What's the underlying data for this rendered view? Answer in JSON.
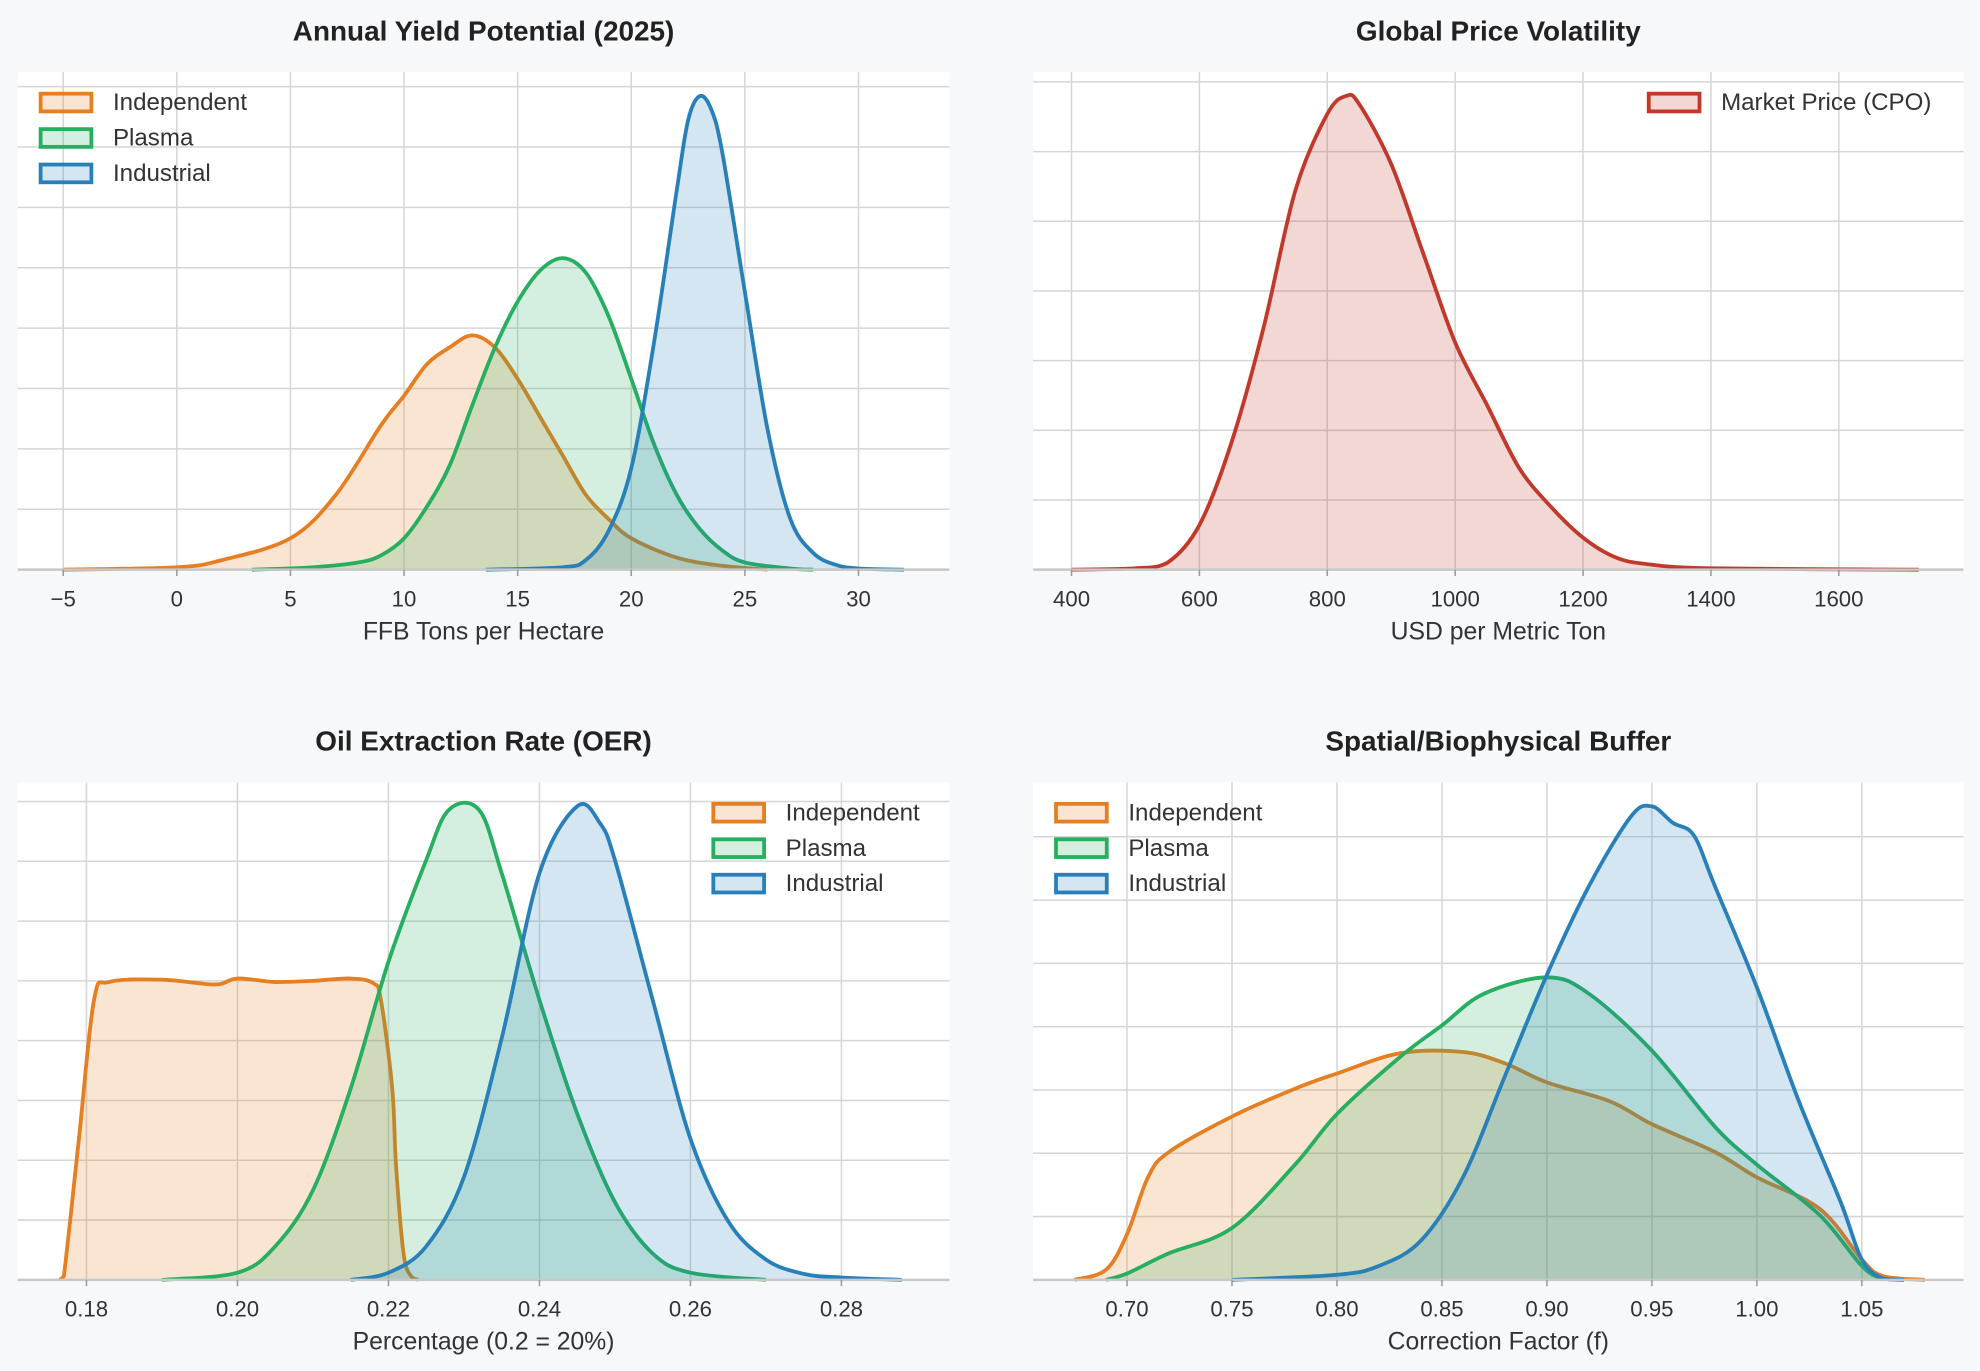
{
  "chart_data": [
    {
      "type": "area",
      "title": "Annual Yield Potential (2025)",
      "xlabel": "FFB Tons per Hectare",
      "ylabel": "",
      "xlim": [
        -7,
        34
      ],
      "ylim": [
        0,
        0.206
      ],
      "xticks": [
        -5,
        0,
        5,
        10,
        15,
        20,
        25,
        30
      ],
      "xtick_labels": [
        "−5",
        "0",
        "5",
        "10",
        "15",
        "20",
        "25",
        "30"
      ],
      "y_grid_step": 0.025,
      "grid": true,
      "legend": "top-left",
      "series": [
        {
          "name": "Independent",
          "color": "#e67e22",
          "points": [
            [
              -5,
              0
            ],
            [
              0,
              0.001
            ],
            [
              2,
              0.004
            ],
            [
              5,
              0.013
            ],
            [
              7,
              0.031
            ],
            [
              9,
              0.06
            ],
            [
              10,
              0.072
            ],
            [
              11,
              0.085
            ],
            [
              12,
              0.092
            ],
            [
              13,
              0.097
            ],
            [
              14,
              0.092
            ],
            [
              15,
              0.079
            ],
            [
              16,
              0.063
            ],
            [
              17,
              0.047
            ],
            [
              18,
              0.031
            ],
            [
              19,
              0.021
            ],
            [
              20,
              0.013
            ],
            [
              22,
              0.005
            ],
            [
              24,
              0.0016
            ],
            [
              26,
              0
            ]
          ]
        },
        {
          "name": "Plasma",
          "color": "#27ae60",
          "points": [
            [
              3.3,
              0
            ],
            [
              6,
              0.001
            ],
            [
              8,
              0.003
            ],
            [
              9,
              0.006
            ],
            [
              10,
              0.013
            ],
            [
              11,
              0.026
            ],
            [
              12,
              0.043
            ],
            [
              13,
              0.068
            ],
            [
              14,
              0.092
            ],
            [
              15,
              0.111
            ],
            [
              16,
              0.124
            ],
            [
              17,
              0.129
            ],
            [
              18,
              0.123
            ],
            [
              19,
              0.105
            ],
            [
              20,
              0.079
            ],
            [
              21,
              0.052
            ],
            [
              22,
              0.031
            ],
            [
              23,
              0.017
            ],
            [
              24,
              0.008
            ],
            [
              25,
              0.003
            ],
            [
              27,
              0.0005
            ],
            [
              28,
              0
            ]
          ]
        },
        {
          "name": "Industrial",
          "color": "#2980b9",
          "points": [
            [
              13.6,
              0
            ],
            [
              17,
              0.001
            ],
            [
              18,
              0.004
            ],
            [
              19,
              0.016
            ],
            [
              20,
              0.042
            ],
            [
              21,
              0.094
            ],
            [
              22,
              0.157
            ],
            [
              22.5,
              0.186
            ],
            [
              23,
              0.196
            ],
            [
              23.5,
              0.191
            ],
            [
              24,
              0.173
            ],
            [
              25,
              0.115
            ],
            [
              26,
              0.058
            ],
            [
              27,
              0.021
            ],
            [
              28,
              0.007
            ],
            [
              29,
              0.002
            ],
            [
              30,
              0.0005
            ],
            [
              32,
              0
            ]
          ]
        }
      ]
    },
    {
      "type": "area",
      "title": "Global Price Volatility",
      "xlabel": "USD per Metric Ton",
      "ylabel": "",
      "xlim": [
        340,
        1795
      ],
      "ylim": [
        0,
        0.00357
      ],
      "xticks": [
        400,
        600,
        800,
        1000,
        1200,
        1400,
        1600
      ],
      "xtick_labels": [
        "400",
        "600",
        "800",
        "1000",
        "1200",
        "1400",
        "1600"
      ],
      "y_grid_step": 0.0005,
      "grid": true,
      "legend": "top-right",
      "series": [
        {
          "name": "Market Price (CPO)",
          "color": "#c0392b",
          "points": [
            [
              400,
              0
            ],
            [
              500,
              1e-05
            ],
            [
              550,
              5e-05
            ],
            [
              600,
              0.00032
            ],
            [
              650,
              0.00091
            ],
            [
              700,
              0.00173
            ],
            [
              750,
              0.00272
            ],
            [
              800,
              0.00327
            ],
            [
              830,
              0.0034
            ],
            [
              850,
              0.00334
            ],
            [
              900,
              0.00291
            ],
            [
              950,
              0.00227
            ],
            [
              1000,
              0.00163
            ],
            [
              1050,
              0.00118
            ],
            [
              1100,
              0.00073
            ],
            [
              1150,
              0.00045
            ],
            [
              1200,
              0.00023
            ],
            [
              1250,
              9e-05
            ],
            [
              1300,
              4e-05
            ],
            [
              1400,
              1e-05
            ],
            [
              1725,
              0
            ]
          ]
        }
      ]
    },
    {
      "type": "area",
      "title": "Oil Extraction Rate (OER)",
      "xlabel": "Percentage (0.2 = 20%)",
      "ylabel": "",
      "xlim": [
        0.1709,
        0.2943
      ],
      "ylim": [
        0,
        41.6
      ],
      "xticks": [
        0.18,
        0.2,
        0.22,
        0.24,
        0.26,
        0.28
      ],
      "xtick_labels": [
        "0.18",
        "0.20",
        "0.22",
        "0.24",
        "0.26",
        "0.28"
      ],
      "y_grid_step": 5,
      "grid": true,
      "legend": "top-right",
      "series": [
        {
          "name": "Independent",
          "color": "#e67e22",
          "points": [
            [
              0.1765,
              0
            ],
            [
              0.177,
              0.3
            ],
            [
              0.179,
              11.8
            ],
            [
              0.181,
              23.4
            ],
            [
              0.183,
              24.9
            ],
            [
              0.19,
              25.1
            ],
            [
              0.197,
              24.7
            ],
            [
              0.2,
              25.2
            ],
            [
              0.205,
              24.9
            ],
            [
              0.21,
              25
            ],
            [
              0.215,
              25.2
            ],
            [
              0.218,
              24.8
            ],
            [
              0.219,
              23.4
            ],
            [
              0.2205,
              16
            ],
            [
              0.221,
              9.6
            ],
            [
              0.222,
              2.2
            ],
            [
              0.223,
              0.3
            ],
            [
              0.224,
              0
            ]
          ]
        },
        {
          "name": "Plasma",
          "color": "#27ae60",
          "points": [
            [
              0.19,
              0
            ],
            [
              0.2,
              0.6
            ],
            [
              0.205,
              2.8
            ],
            [
              0.21,
              7.5
            ],
            [
              0.215,
              16
            ],
            [
              0.22,
              26.6
            ],
            [
              0.225,
              35.1
            ],
            [
              0.228,
              39.3
            ],
            [
              0.232,
              39.3
            ],
            [
              0.235,
              34
            ],
            [
              0.24,
              23.4
            ],
            [
              0.245,
              13.9
            ],
            [
              0.25,
              6.5
            ],
            [
              0.255,
              2.2
            ],
            [
              0.26,
              0.6
            ],
            [
              0.27,
              0
            ]
          ]
        },
        {
          "name": "Industrial",
          "color": "#2980b9",
          "points": [
            [
              0.215,
              0
            ],
            [
              0.22,
              0.6
            ],
            [
              0.225,
              2.8
            ],
            [
              0.23,
              8.6
            ],
            [
              0.235,
              20.2
            ],
            [
              0.24,
              34
            ],
            [
              0.245,
              39.6
            ],
            [
              0.248,
              38.2
            ],
            [
              0.25,
              35.1
            ],
            [
              0.255,
              23.4
            ],
            [
              0.26,
              11.8
            ],
            [
              0.265,
              4.9
            ],
            [
              0.27,
              1.7
            ],
            [
              0.275,
              0.5
            ],
            [
              0.28,
              0.2
            ],
            [
              0.288,
              0
            ]
          ]
        }
      ]
    },
    {
      "type": "area",
      "title": "Spatial/Biophysical Buffer",
      "xlabel": "Correction Factor (f)",
      "ylabel": "",
      "xlim": [
        0.6553,
        1.0984
      ],
      "ylim": [
        0,
        11.79
      ],
      "xticks": [
        0.7,
        0.75,
        0.8,
        0.85,
        0.9,
        0.95,
        1.0,
        1.05
      ],
      "xtick_labels": [
        "0.70",
        "0.75",
        "0.80",
        "0.85",
        "0.90",
        "0.95",
        "1.00",
        "1.05"
      ],
      "y_grid_step": 1.5,
      "grid": true,
      "legend": "top-left",
      "series": [
        {
          "name": "Independent",
          "color": "#e67e22",
          "points": [
            [
              0.675,
              0
            ],
            [
              0.69,
              0.24
            ],
            [
              0.7,
              1.08
            ],
            [
              0.71,
              2.43
            ],
            [
              0.72,
              3.03
            ],
            [
              0.75,
              3.87
            ],
            [
              0.78,
              4.53
            ],
            [
              0.8,
              4.89
            ],
            [
              0.83,
              5.37
            ],
            [
              0.86,
              5.4
            ],
            [
              0.88,
              5.13
            ],
            [
              0.9,
              4.68
            ],
            [
              0.93,
              4.23
            ],
            [
              0.95,
              3.69
            ],
            [
              0.98,
              3.03
            ],
            [
              1.0,
              2.43
            ],
            [
              1.03,
              1.68
            ],
            [
              1.05,
              0.48
            ],
            [
              1.06,
              0.09
            ],
            [
              1.08,
              0
            ]
          ]
        },
        {
          "name": "Plasma",
          "color": "#27ae60",
          "points": [
            [
              0.69,
              0
            ],
            [
              0.7,
              0.15
            ],
            [
              0.72,
              0.63
            ],
            [
              0.75,
              1.23
            ],
            [
              0.78,
              2.73
            ],
            [
              0.8,
              3.93
            ],
            [
              0.83,
              5.28
            ],
            [
              0.85,
              6.03
            ],
            [
              0.87,
              6.78
            ],
            [
              0.9,
              7.17
            ],
            [
              0.92,
              6.78
            ],
            [
              0.95,
              5.43
            ],
            [
              0.98,
              3.63
            ],
            [
              1.0,
              2.73
            ],
            [
              1.03,
              1.53
            ],
            [
              1.05,
              0.33
            ],
            [
              1.06,
              0.03
            ],
            [
              1.07,
              0
            ]
          ]
        },
        {
          "name": "Industrial",
          "color": "#2980b9",
          "points": [
            [
              0.75,
              0
            ],
            [
              0.8,
              0.12
            ],
            [
              0.82,
              0.33
            ],
            [
              0.84,
              0.93
            ],
            [
              0.86,
              2.43
            ],
            [
              0.88,
              4.83
            ],
            [
              0.9,
              7.23
            ],
            [
              0.92,
              9.33
            ],
            [
              0.94,
              10.98
            ],
            [
              0.95,
              11.22
            ],
            [
              0.96,
              10.83
            ],
            [
              0.97,
              10.53
            ],
            [
              0.98,
              9.33
            ],
            [
              1.0,
              6.93
            ],
            [
              1.02,
              4.23
            ],
            [
              1.04,
              1.83
            ],
            [
              1.05,
              0.48
            ],
            [
              1.06,
              0.03
            ],
            [
              1.07,
              0
            ]
          ]
        }
      ]
    }
  ]
}
